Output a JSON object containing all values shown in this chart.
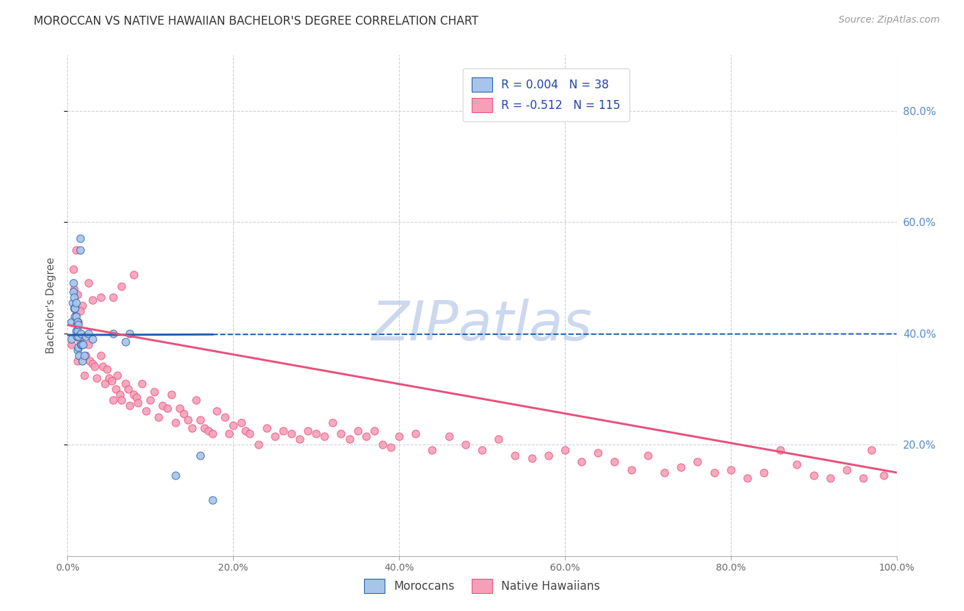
{
  "title": "MOROCCAN VS NATIVE HAWAIIAN BACHELOR'S DEGREE CORRELATION CHART",
  "source": "Source: ZipAtlas.com",
  "ylabel": "Bachelor's Degree",
  "watermark": "ZIPatlas",
  "legend_moroccan_R": "R = 0.004",
  "legend_moroccan_N": "N = 38",
  "legend_hawaiian_R": "R = -0.512",
  "legend_hawaiian_N": "N = 115",
  "moroccan_color": "#a8c4e8",
  "moroccan_line_color": "#2060b0",
  "hawaiian_color": "#f5a0b8",
  "hawaiian_line_color": "#e8507a",
  "moroccan_points_x": [
    0.005,
    0.005,
    0.006,
    0.007,
    0.007,
    0.008,
    0.008,
    0.009,
    0.009,
    0.01,
    0.01,
    0.01,
    0.011,
    0.011,
    0.012,
    0.012,
    0.012,
    0.013,
    0.013,
    0.013,
    0.014,
    0.015,
    0.015,
    0.016,
    0.016,
    0.017,
    0.018,
    0.019,
    0.02,
    0.022,
    0.025,
    0.03,
    0.055,
    0.07,
    0.075,
    0.13,
    0.16,
    0.175
  ],
  "moroccan_points_y": [
    0.39,
    0.42,
    0.455,
    0.475,
    0.49,
    0.445,
    0.465,
    0.43,
    0.445,
    0.405,
    0.43,
    0.455,
    0.395,
    0.415,
    0.37,
    0.405,
    0.42,
    0.375,
    0.395,
    0.415,
    0.36,
    0.55,
    0.57,
    0.38,
    0.4,
    0.38,
    0.35,
    0.38,
    0.36,
    0.395,
    0.4,
    0.39,
    0.4,
    0.385,
    0.4,
    0.145,
    0.18,
    0.1
  ],
  "hawaiian_points_x": [
    0.005,
    0.007,
    0.008,
    0.01,
    0.012,
    0.013,
    0.015,
    0.018,
    0.02,
    0.022,
    0.025,
    0.027,
    0.03,
    0.033,
    0.035,
    0.04,
    0.043,
    0.045,
    0.048,
    0.05,
    0.053,
    0.055,
    0.058,
    0.06,
    0.063,
    0.065,
    0.07,
    0.073,
    0.075,
    0.08,
    0.083,
    0.085,
    0.09,
    0.095,
    0.1,
    0.105,
    0.11,
    0.115,
    0.12,
    0.125,
    0.13,
    0.135,
    0.14,
    0.145,
    0.15,
    0.155,
    0.16,
    0.165,
    0.17,
    0.175,
    0.18,
    0.19,
    0.195,
    0.2,
    0.21,
    0.215,
    0.22,
    0.23,
    0.24,
    0.25,
    0.26,
    0.27,
    0.28,
    0.29,
    0.3,
    0.31,
    0.32,
    0.33,
    0.34,
    0.35,
    0.36,
    0.37,
    0.38,
    0.39,
    0.4,
    0.42,
    0.44,
    0.46,
    0.48,
    0.5,
    0.52,
    0.54,
    0.56,
    0.58,
    0.6,
    0.62,
    0.64,
    0.66,
    0.68,
    0.7,
    0.72,
    0.74,
    0.76,
    0.78,
    0.8,
    0.82,
    0.84,
    0.86,
    0.88,
    0.9,
    0.92,
    0.94,
    0.96,
    0.97,
    0.985,
    0.01,
    0.012,
    0.015,
    0.018,
    0.025,
    0.03,
    0.04,
    0.055,
    0.065,
    0.08
  ],
  "hawaiian_points_y": [
    0.38,
    0.515,
    0.48,
    0.435,
    0.35,
    0.42,
    0.385,
    0.45,
    0.325,
    0.36,
    0.38,
    0.35,
    0.345,
    0.34,
    0.32,
    0.36,
    0.34,
    0.31,
    0.335,
    0.32,
    0.315,
    0.28,
    0.3,
    0.325,
    0.29,
    0.28,
    0.31,
    0.3,
    0.27,
    0.29,
    0.285,
    0.275,
    0.31,
    0.26,
    0.28,
    0.295,
    0.25,
    0.27,
    0.265,
    0.29,
    0.24,
    0.265,
    0.255,
    0.245,
    0.23,
    0.28,
    0.245,
    0.23,
    0.225,
    0.22,
    0.26,
    0.25,
    0.22,
    0.235,
    0.24,
    0.225,
    0.22,
    0.2,
    0.23,
    0.215,
    0.225,
    0.22,
    0.21,
    0.225,
    0.22,
    0.215,
    0.24,
    0.22,
    0.21,
    0.225,
    0.215,
    0.225,
    0.2,
    0.195,
    0.215,
    0.22,
    0.19,
    0.215,
    0.2,
    0.19,
    0.21,
    0.18,
    0.175,
    0.18,
    0.19,
    0.17,
    0.185,
    0.17,
    0.155,
    0.18,
    0.15,
    0.16,
    0.17,
    0.15,
    0.155,
    0.14,
    0.15,
    0.19,
    0.165,
    0.145,
    0.14,
    0.155,
    0.14,
    0.19,
    0.145,
    0.55,
    0.47,
    0.44,
    0.395,
    0.49,
    0.46,
    0.465,
    0.465,
    0.485,
    0.505
  ],
  "moroccan_trend_x": [
    0.0,
    0.18
  ],
  "moroccan_trend_y": [
    0.397,
    0.398
  ],
  "hawaiian_trend_x": [
    0.0,
    1.0
  ],
  "hawaiian_trend_y": [
    0.415,
    0.15
  ],
  "xlim": [
    0.0,
    1.0
  ],
  "ylim": [
    0.0,
    0.9
  ],
  "ytick_right_labels": [
    "20.0%",
    "40.0%",
    "60.0%",
    "80.0%"
  ],
  "ytick_right_values": [
    0.2,
    0.4,
    0.6,
    0.8
  ],
  "xtick_values": [
    0.0,
    0.2,
    0.4,
    0.6,
    0.8,
    1.0
  ],
  "grid_color": "#ccccdd",
  "background_color": "#ffffff",
  "title_fontsize": 12,
  "source_fontsize": 10,
  "label_fontsize": 11,
  "tick_fontsize": 10,
  "watermark_color": "#ccd8ee",
  "watermark_fontsize": 58
}
